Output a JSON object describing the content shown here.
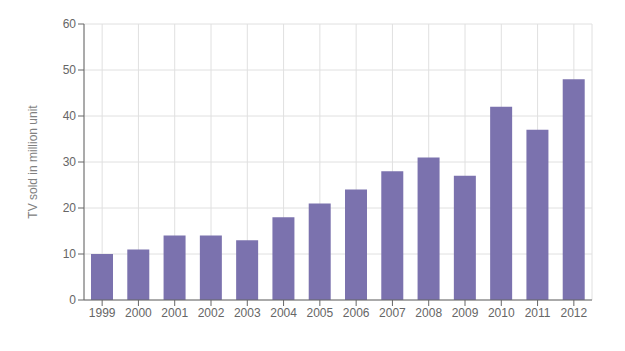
{
  "chart_data": {
    "type": "bar",
    "ylabel": "TV sold in million unit",
    "categories": [
      "1999",
      "2000",
      "2001",
      "2002",
      "2003",
      "2004",
      "2005",
      "2006",
      "2007",
      "2008",
      "2009",
      "2010",
      "2011",
      "2012"
    ],
    "values": [
      10,
      11,
      14,
      14,
      13,
      18,
      21,
      24,
      28,
      31,
      27,
      42,
      37,
      48
    ],
    "color": "#7b72ae",
    "ylim": [
      0,
      60
    ],
    "yticks": [
      0,
      10,
      20,
      30,
      40,
      50,
      60
    ],
    "grid": true
  }
}
